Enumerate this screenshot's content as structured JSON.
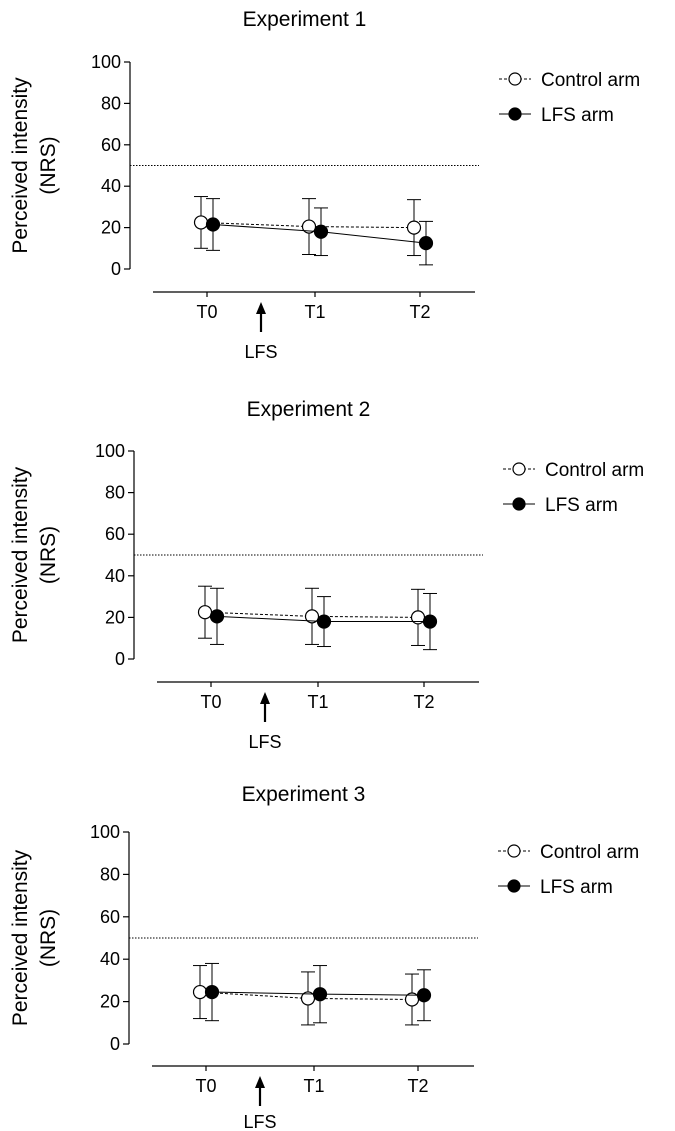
{
  "chart_data": [
    {
      "type": "line",
      "title": "Experiment 1",
      "ylabel_line1": "Perceived intensity",
      "ylabel_line2": "(NRS)",
      "categories": [
        "T0",
        "T1",
        "T2"
      ],
      "ylim": [
        0,
        100
      ],
      "yticks": [
        "0",
        "20",
        "40",
        "60",
        "80",
        "100"
      ],
      "threshold": 50,
      "arrow_label": "LFS",
      "legend_position": "top-right",
      "series": [
        {
          "name": "Control arm",
          "marker": "open-circle",
          "line": "dashed",
          "values": [
            22.5,
            20.5,
            20
          ],
          "error": [
            12.5,
            13.5,
            13.5
          ]
        },
        {
          "name": "LFS arm",
          "marker": "filled-circle",
          "line": "solid",
          "values": [
            21.5,
            18,
            12.5
          ],
          "error": [
            12.5,
            11.5,
            10.5
          ]
        }
      ]
    },
    {
      "type": "line",
      "title": "Experiment 2",
      "ylabel_line1": "Perceived intensity",
      "ylabel_line2": "(NRS)",
      "categories": [
        "T0",
        "T1",
        "T2"
      ],
      "ylim": [
        0,
        100
      ],
      "yticks": [
        "0",
        "20",
        "40",
        "60",
        "80",
        "100"
      ],
      "threshold": 50,
      "arrow_label": "LFS",
      "legend_position": "top-right",
      "series": [
        {
          "name": "Control arm",
          "marker": "open-circle",
          "line": "dashed",
          "values": [
            22.5,
            20.5,
            20
          ],
          "error": [
            12.5,
            13.5,
            13.5
          ]
        },
        {
          "name": "LFS arm",
          "marker": "filled-circle",
          "line": "solid",
          "values": [
            20.5,
            18,
            18
          ],
          "error": [
            13.5,
            12,
            13.5
          ]
        }
      ]
    },
    {
      "type": "line",
      "title": "Experiment 3",
      "ylabel_line1": "Perceived intensity",
      "ylabel_line2": "(NRS)",
      "categories": [
        "T0",
        "T1",
        "T2"
      ],
      "ylim": [
        0,
        100
      ],
      "yticks": [
        "0",
        "20",
        "40",
        "60",
        "80",
        "100"
      ],
      "threshold": 50,
      "arrow_label": "LFS",
      "legend_position": "top-right",
      "series": [
        {
          "name": "Control arm",
          "marker": "open-circle",
          "line": "dashed",
          "values": [
            24.5,
            21.5,
            21
          ],
          "error": [
            12.5,
            12.5,
            12
          ]
        },
        {
          "name": "LFS arm",
          "marker": "filled-circle",
          "line": "solid",
          "values": [
            24.5,
            23.5,
            23
          ],
          "error": [
            13.5,
            13.5,
            12
          ]
        }
      ]
    }
  ]
}
